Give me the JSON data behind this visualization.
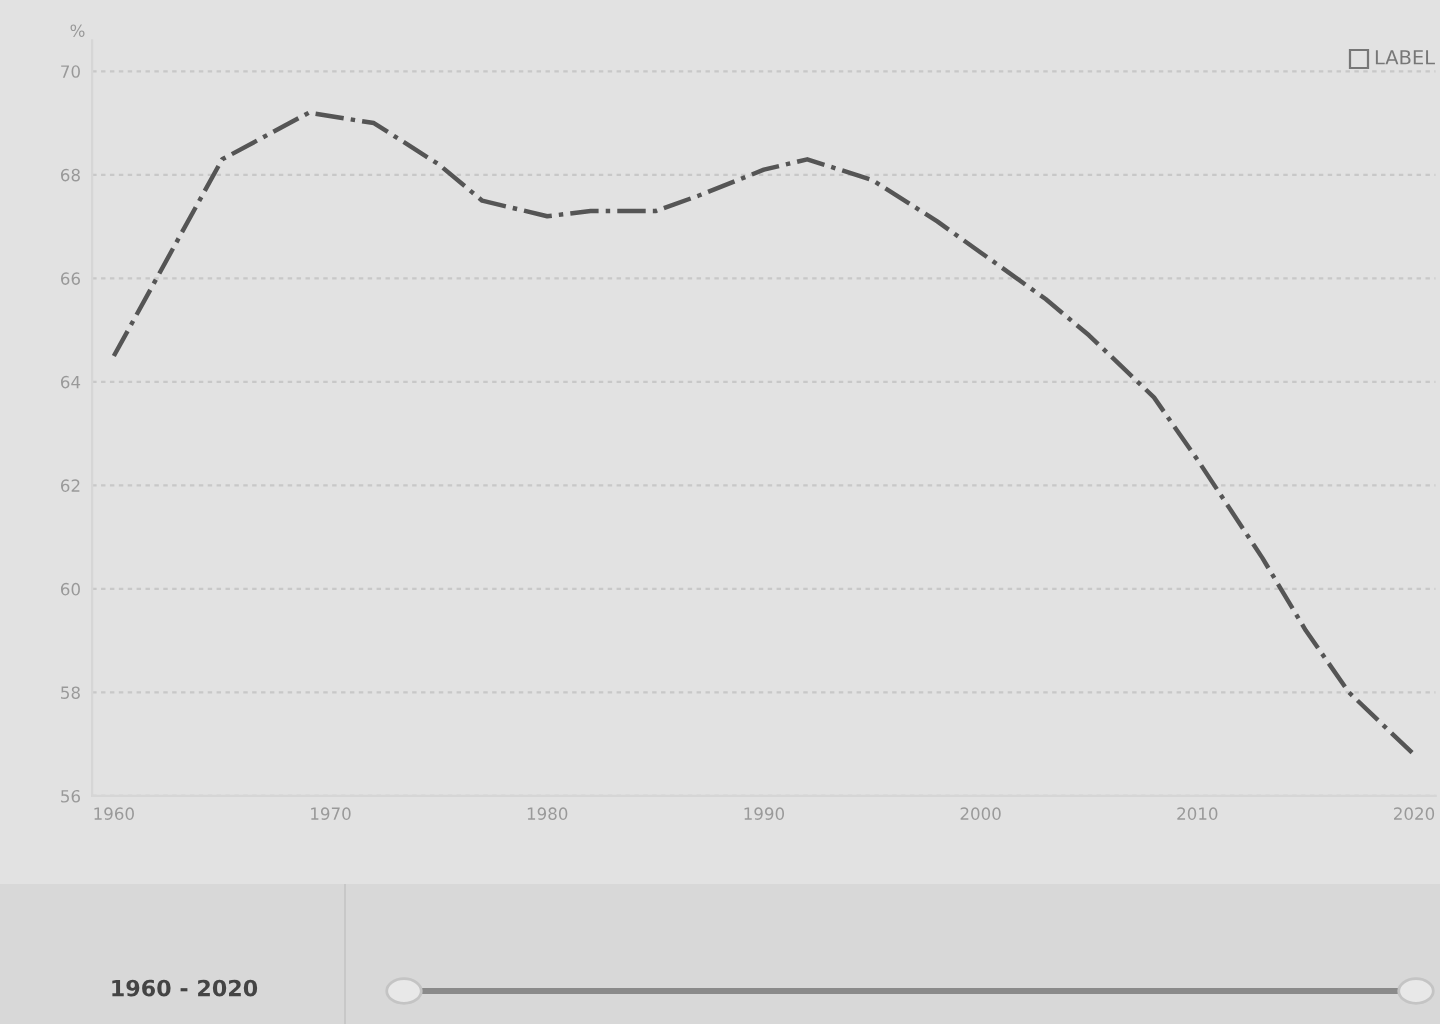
{
  "chart_data": {
    "type": "line",
    "ylabel": "%",
    "x": [
      1960,
      1965,
      1969,
      1972,
      1975,
      1977,
      1980,
      1982,
      1985,
      1987,
      1990,
      1992,
      1995,
      1998,
      2000,
      2003,
      2005,
      2008,
      2010,
      2013,
      2015,
      2017,
      2020
    ],
    "series": [
      {
        "color": "#555555",
        "values": [
          64.5,
          68.3,
          69.2,
          69.0,
          68.2,
          67.5,
          67.2,
          67.3,
          67.3,
          67.6,
          68.1,
          68.3,
          67.9,
          67.1,
          66.5,
          65.6,
          64.9,
          63.7,
          62.5,
          60.6,
          59.2,
          58.0,
          56.8
        ]
      }
    ],
    "xlim": [
      1959,
      2021
    ],
    "xticks": [
      1960,
      1970,
      1980,
      1990,
      2000,
      2010,
      2020
    ],
    "ylim": [
      56,
      70.6
    ],
    "yticks": [
      56,
      58,
      60,
      62,
      64,
      66,
      68,
      70
    ],
    "grid": "y",
    "line_style": "dashed",
    "marker": "none",
    "legend": false,
    "annotations": [
      "LABEL",
      "1960 - 2020"
    ]
  }
}
